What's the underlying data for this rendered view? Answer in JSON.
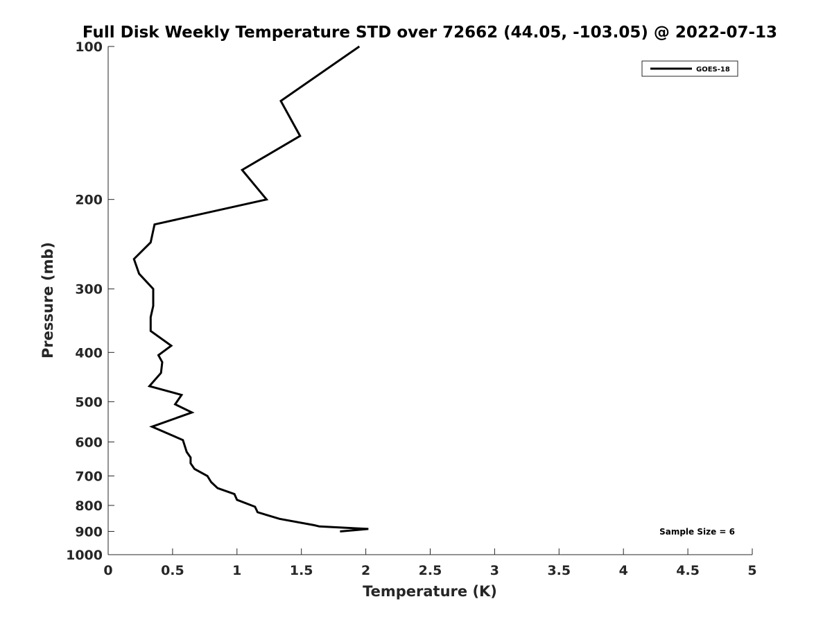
{
  "chart_data": {
    "type": "line",
    "title": "Full Disk Weekly Temperature STD over 72662 (44.05, -103.05) @ 2022-07-13",
    "xlabel": "Temperature (K)",
    "ylabel": "Pressure (mb)",
    "xlim": [
      0,
      5
    ],
    "ylim": [
      100,
      1000
    ],
    "y_scale": "log",
    "y_reversed": true,
    "grid": false,
    "legend_position": "top-right",
    "x_ticks": [
      "0",
      "0.5",
      "1",
      "1.5",
      "2",
      "2.5",
      "3",
      "3.5",
      "4",
      "4.5",
      "5"
    ],
    "y_ticks": [
      "100",
      "200",
      "300",
      "400",
      "500",
      "600",
      "700",
      "800",
      "900",
      "1000"
    ],
    "series": [
      {
        "name": "GOES-18",
        "color": "#000000",
        "points": [
          [
            1.95,
            100
          ],
          [
            1.34,
            128
          ],
          [
            1.49,
            150
          ],
          [
            1.04,
            175
          ],
          [
            1.23,
            200
          ],
          [
            0.36,
            224
          ],
          [
            0.33,
            243
          ],
          [
            0.2,
            262
          ],
          [
            0.24,
            280
          ],
          [
            0.35,
            300
          ],
          [
            0.35,
            324
          ],
          [
            0.33,
            341
          ],
          [
            0.33,
            363
          ],
          [
            0.49,
            388
          ],
          [
            0.39,
            405
          ],
          [
            0.42,
            418
          ],
          [
            0.41,
            439
          ],
          [
            0.32,
            466
          ],
          [
            0.57,
            485
          ],
          [
            0.52,
            506
          ],
          [
            0.65,
            525
          ],
          [
            0.34,
            560
          ],
          [
            0.58,
            595
          ],
          [
            0.61,
            628
          ],
          [
            0.64,
            644
          ],
          [
            0.64,
            661
          ],
          [
            0.67,
            678
          ],
          [
            0.77,
            700
          ],
          [
            0.8,
            720
          ],
          [
            0.85,
            740
          ],
          [
            0.98,
            760
          ],
          [
            1.0,
            780
          ],
          [
            1.14,
            805
          ],
          [
            1.16,
            825
          ],
          [
            1.33,
            850
          ],
          [
            1.6,
            875
          ],
          [
            1.64,
            880
          ],
          [
            2.02,
            890
          ],
          [
            1.8,
            900
          ]
        ]
      }
    ],
    "annotations": [
      "Sample Size = 6"
    ]
  }
}
